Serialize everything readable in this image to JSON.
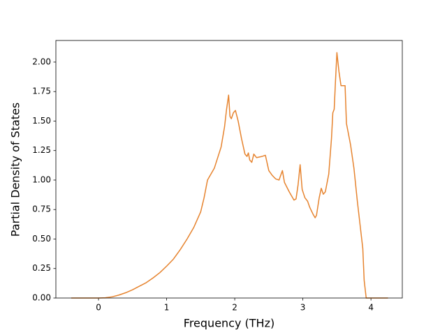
{
  "chart_data": {
    "type": "line",
    "xlabel": "Frequency (THz)",
    "ylabel": "Partial Density of States",
    "x": [
      -0.4,
      0,
      0.1,
      0.2,
      0.3,
      0.4,
      0.5,
      0.6,
      0.7,
      0.8,
      0.9,
      1.0,
      1.1,
      1.2,
      1.3,
      1.4,
      1.5,
      1.55,
      1.6,
      1.7,
      1.8,
      1.85,
      1.88,
      1.91,
      1.93,
      1.95,
      1.98,
      2.01,
      2.05,
      2.1,
      2.15,
      2.18,
      2.2,
      2.22,
      2.25,
      2.28,
      2.32,
      2.4,
      2.45,
      2.5,
      2.55,
      2.6,
      2.65,
      2.7,
      2.73,
      2.8,
      2.87,
      2.9,
      2.93,
      2.96,
      2.99,
      3.03,
      3.07,
      3.1,
      3.15,
      3.18,
      3.2,
      3.24,
      3.27,
      3.3,
      3.33,
      3.38,
      3.42,
      3.44,
      3.46,
      3.48,
      3.5,
      3.53,
      3.56,
      3.6,
      3.62,
      3.64,
      3.7,
      3.75,
      3.8,
      3.86,
      3.88,
      3.9,
      3.93,
      4.0,
      4.25
    ],
    "values": [
      0,
      0,
      0.002,
      0.01,
      0.025,
      0.045,
      0.07,
      0.1,
      0.13,
      0.17,
      0.215,
      0.27,
      0.33,
      0.41,
      0.5,
      0.6,
      0.73,
      0.85,
      1.0,
      1.1,
      1.28,
      1.45,
      1.6,
      1.72,
      1.54,
      1.52,
      1.57,
      1.59,
      1.5,
      1.35,
      1.22,
      1.2,
      1.23,
      1.17,
      1.15,
      1.22,
      1.19,
      1.2,
      1.21,
      1.08,
      1.04,
      1.01,
      1.0,
      1.08,
      0.98,
      0.9,
      0.83,
      0.84,
      0.96,
      1.13,
      0.92,
      0.85,
      0.82,
      0.77,
      0.71,
      0.68,
      0.7,
      0.85,
      0.93,
      0.88,
      0.9,
      1.05,
      1.35,
      1.57,
      1.6,
      1.85,
      2.08,
      1.92,
      1.8,
      1.8,
      1.8,
      1.48,
      1.3,
      1.1,
      0.82,
      0.52,
      0.42,
      0.15,
      0,
      0,
      0
    ],
    "color": "#e6832e",
    "xlim": [
      -0.626,
      4.46
    ],
    "ylim": [
      0,
      2.183
    ],
    "xticks": [
      0,
      1,
      2,
      3,
      4
    ],
    "yticks": [
      {
        "value": 0,
        "label": "0.00"
      },
      {
        "value": 0.25,
        "label": "0.25"
      },
      {
        "value": 0.5,
        "label": "0.50"
      },
      {
        "value": 0.75,
        "label": "0.75"
      },
      {
        "value": 1,
        "label": "1.00"
      },
      {
        "value": 1.25,
        "label": "1.25"
      },
      {
        "value": 1.5,
        "label": "1.50"
      },
      {
        "value": 1.75,
        "label": "1.75"
      },
      {
        "value": 2,
        "label": "2.00"
      }
    ]
  }
}
